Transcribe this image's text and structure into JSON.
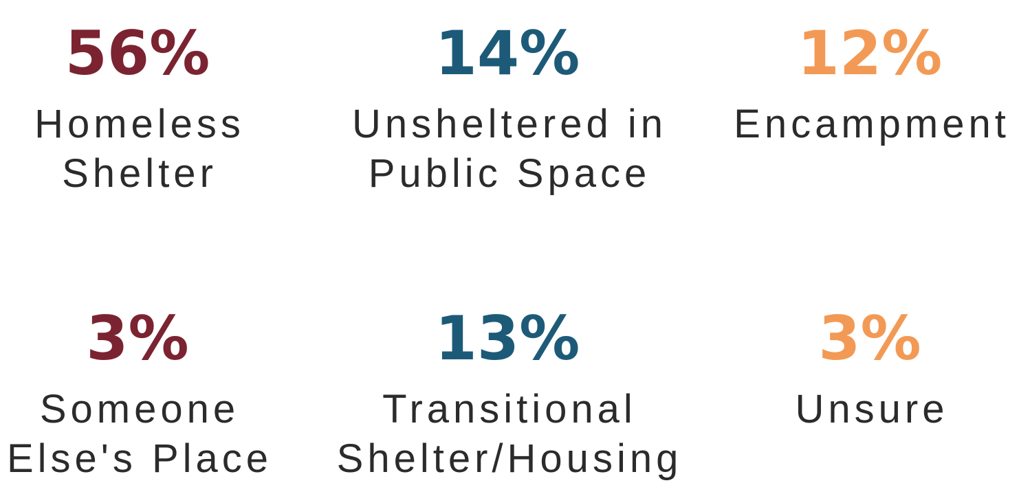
{
  "stats": [
    {
      "value": "56%",
      "label": [
        "Homeless",
        "Shelter"
      ],
      "color": "#7b2331"
    },
    {
      "value": "14%",
      "label": [
        "Unsheltered in",
        "Public Space"
      ],
      "color": "#1d5a78"
    },
    {
      "value": "12%",
      "label": [
        "Encampment"
      ],
      "color": "#f29a55"
    },
    {
      "value": "3%",
      "label": [
        "Someone",
        "Else's Place"
      ],
      "color": "#7b2331"
    },
    {
      "value": "13%",
      "label": [
        "Transitional",
        "Shelter/Housing"
      ],
      "color": "#1d5a78"
    },
    {
      "value": "3%",
      "label": [
        "Unsure"
      ],
      "color": "#f29a55"
    }
  ]
}
